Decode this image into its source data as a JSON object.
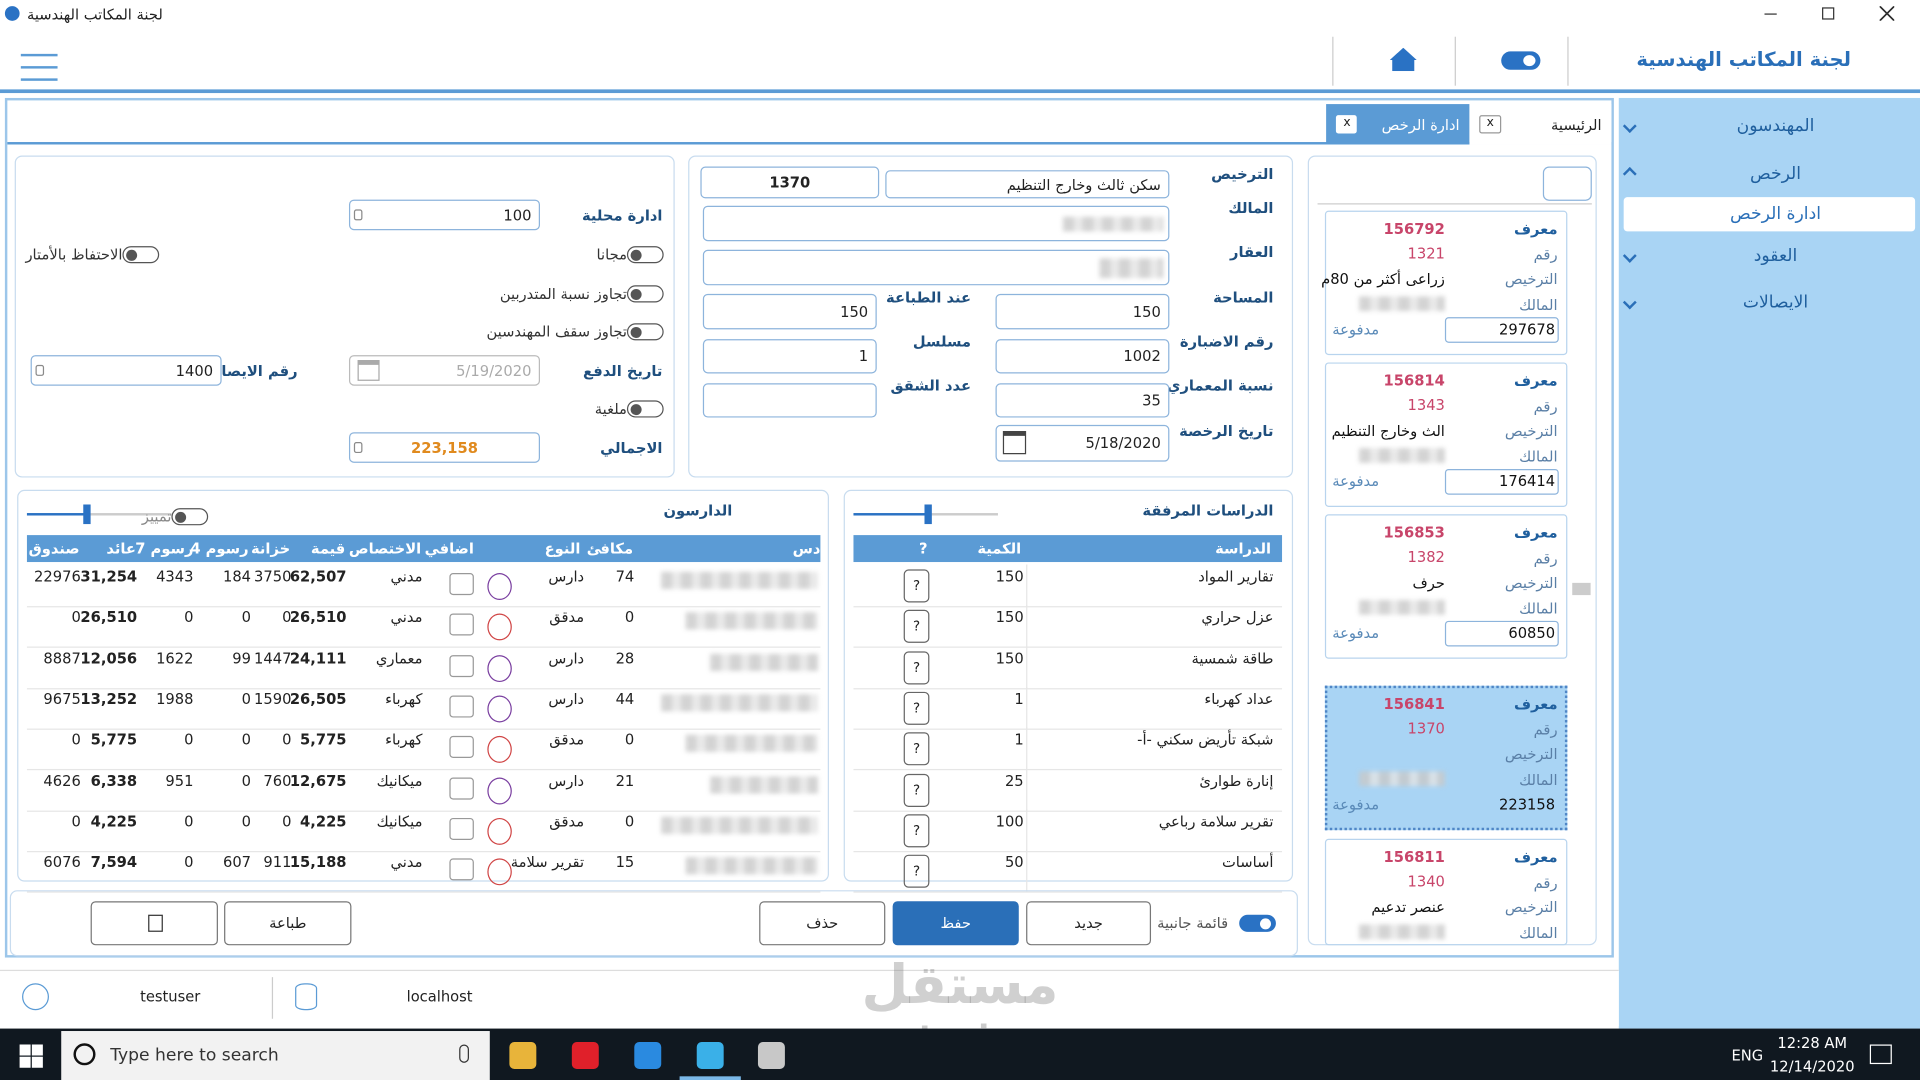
{
  "window": {
    "title": "لجنة المكاتب الهندسية"
  },
  "header": {
    "title": "لجنة المكاتب الهندسية"
  },
  "sidebar": {
    "items": [
      "المهندسون",
      "الرخص",
      "ادارة الرخص",
      "العقود",
      "الايصالات"
    ]
  },
  "tabs": [
    {
      "label": "الرئيسية",
      "close": "x"
    },
    {
      "label": "ادارة الرخص",
      "close": "x"
    }
  ],
  "license_list": {
    "labels": {
      "id": "معرف",
      "number": "رقم",
      "type": "الترخيص",
      "owner": "المالك"
    },
    "cards": [
      {
        "id": "156792",
        "number": "1321",
        "type": "زراعى أكثر من 80م",
        "status": "مدفوعة",
        "amount": "297678"
      },
      {
        "id": "156814",
        "number": "1343",
        "type": "الث وخارج التنظيم",
        "status": "مدفوعة",
        "amount": "176414"
      },
      {
        "id": "156853",
        "number": "1382",
        "type": "حرف",
        "status": "مدفوعة",
        "amount": "60850"
      },
      {
        "id": "156841",
        "number": "1370",
        "type": "",
        "status": "مدفوعة",
        "amount": "223158"
      },
      {
        "id": "156811",
        "number": "1340",
        "type": "عنصر تدعيم"
      }
    ]
  },
  "license_form": {
    "labels": {
      "license": "الترخيص",
      "owner": "المالك",
      "property": "العقار",
      "area": "المساحة",
      "archive_number": "رقم الاضبارة",
      "architect_ratio": "نسبة المعماري",
      "license_date": "تاريخ الرخصة",
      "at_printing": "عند الطباعة",
      "serial": "مسلسل",
      "apartments": "عدد الشقق"
    },
    "values": {
      "license_number": "1370",
      "license_type": "سكن ثالث وخارج التنظيم",
      "area": "150",
      "at_printing": "150",
      "archive_number": "1002",
      "serial": "1",
      "architect_ratio": "35",
      "license_date": "5/18/2020"
    }
  },
  "payment_form": {
    "local_admin_label": "ادارة محلية",
    "local_admin": "100",
    "free": "مجانا",
    "keep_meters": "الاحتفاظ بالأمتار",
    "exceed_trainees": "تجاوز نسبة المتدربين",
    "exceed_engineers": "تجاوز سقف المهندسين",
    "payment_date_label": "تاريخ الدفع",
    "payment_date": "5/19/2020",
    "receipt_label": "رقم الايصال",
    "receipt": "1400",
    "cancelled": "ملغية",
    "total_label": "الاجمالي",
    "total": "223,158"
  },
  "studies": {
    "title": "الدراسات المرفقة",
    "headers": [
      "الدراسة",
      "الكمية",
      "?"
    ],
    "button": "?",
    "rows": [
      [
        "تقارير المواد",
        "150"
      ],
      [
        "عزل حراري",
        "150"
      ],
      [
        "طاقة شمسية",
        "150"
      ],
      [
        "عداد كهرباء",
        "1"
      ],
      [
        "شبكة تأريض سكني -أ-",
        "1"
      ],
      [
        "إنارة طوارئ",
        "25"
      ],
      [
        "تقرير سلامة رباعي",
        "100"
      ],
      [
        "أساسات",
        "50"
      ]
    ]
  },
  "students": {
    "title": "الدارسون",
    "highlight": "تمييز",
    "headers": [
      "دس",
      "مكافئ",
      "النوع",
      "اضافي",
      "الاختصاص",
      "قيمة",
      "خزانة",
      "رسوم 4",
      "رسوم 7",
      "عائد",
      "صندوق"
    ],
    "rows": [
      [
        "74",
        "دارس",
        "مدني",
        "62,507",
        "3750",
        "184",
        "4343",
        "31,254",
        "22976"
      ],
      [
        "0",
        "مدقق",
        "مدني",
        "26,510",
        "0",
        "0",
        "0",
        "26,510",
        "0"
      ],
      [
        "28",
        "دارس",
        "معماري",
        "24,111",
        "1447",
        "99",
        "1622",
        "12,056",
        "8887"
      ],
      [
        "44",
        "دارس",
        "كهرباء",
        "26,505",
        "1590",
        "0",
        "1988",
        "13,252",
        "9675"
      ],
      [
        "0",
        "مدقق",
        "كهرباء",
        "5,775",
        "0",
        "0",
        "0",
        "5,775",
        "0"
      ],
      [
        "21",
        "دارس",
        "ميكانيك",
        "12,675",
        "760",
        "0",
        "951",
        "6,338",
        "4626"
      ],
      [
        "0",
        "مدقق",
        "ميكانيك",
        "4,225",
        "0",
        "0",
        "0",
        "4,225",
        "0"
      ],
      [
        "15",
        "تقرير سلامة",
        "مدني",
        "15,188",
        "911",
        "607",
        "0",
        "7,594",
        "6076"
      ]
    ]
  },
  "actions": {
    "side_list": "قائمة جانبية",
    "new": "جديد",
    "save": "حفظ",
    "delete": "حذف",
    "print": "طباعة"
  },
  "status_bar": {
    "user": "testuser",
    "server": "localhost"
  },
  "taskbar": {
    "search": "Type here to search",
    "language": "ENG",
    "time": "12:28 AM",
    "date": "12/14/2020"
  },
  "watermark": {
    "brand": "مستقل",
    "site": "mostaqi.com"
  }
}
